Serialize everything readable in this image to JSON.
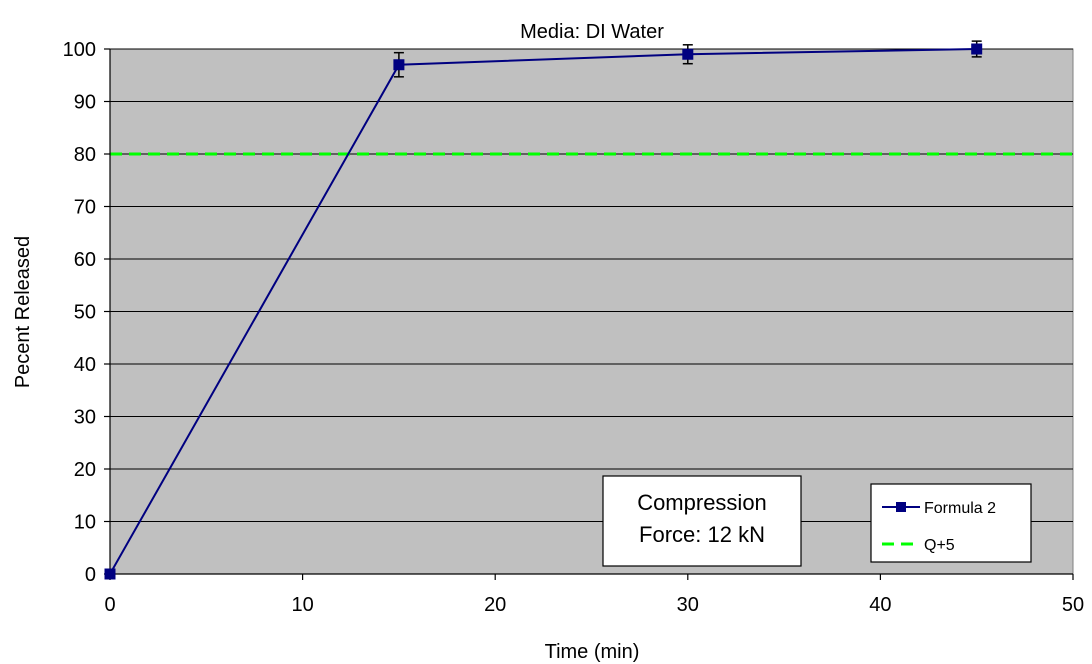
{
  "chart_data": {
    "type": "line",
    "title": "Media: DI Water",
    "xlabel": "Time (min)",
    "ylabel": "Pecent Released",
    "xlim": [
      0,
      50
    ],
    "ylim": [
      0,
      100
    ],
    "xticks": [
      0,
      10,
      20,
      30,
      40,
      50
    ],
    "yticks": [
      0,
      10,
      20,
      30,
      40,
      50,
      60,
      70,
      80,
      90,
      100
    ],
    "grid": "horizontal",
    "plot_background": "#c0c0c0",
    "series": [
      {
        "name": "Formula 2",
        "color": "#000080",
        "marker": "square",
        "x": [
          0,
          15,
          30,
          45
        ],
        "y": [
          0,
          97,
          99,
          100
        ],
        "error": [
          0,
          2.3,
          1.8,
          1.5
        ]
      }
    ],
    "reference_lines": [
      {
        "name": "Q+5",
        "y": 80,
        "color": "#00ff00",
        "style": "dashed"
      }
    ],
    "annotation": {
      "lines": [
        "Compression",
        "Force: 12 kN"
      ]
    },
    "legend": {
      "position": "bottom-right"
    }
  }
}
